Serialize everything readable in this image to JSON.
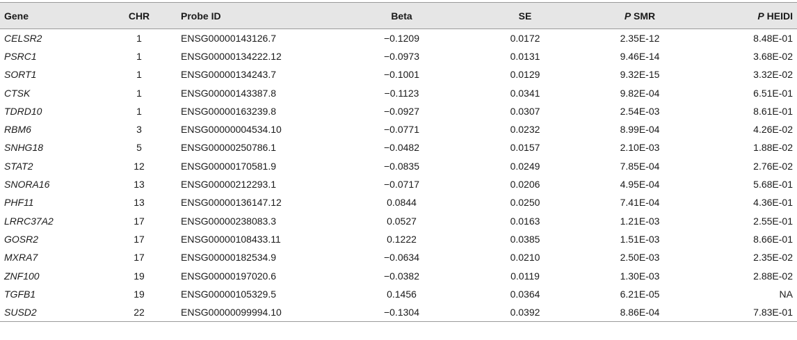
{
  "table": {
    "headers": {
      "gene": "Gene",
      "chr": "CHR",
      "probe_id": "Probe ID",
      "beta": "Beta",
      "se": "SE",
      "p_smr_p": "P",
      "p_smr_rest": " SMR",
      "p_heidi_p": "P",
      "p_heidi_rest": " HEIDI"
    },
    "rows": [
      {
        "gene": "CELSR2",
        "chr": "1",
        "probe": "ENSG00000143126.7",
        "beta": "−0.1209",
        "se": "0.0172",
        "psmr": "2.35E-12",
        "pheidi": "8.48E-01"
      },
      {
        "gene": "PSRC1",
        "chr": "1",
        "probe": "ENSG00000134222.12",
        "beta": "−0.0973",
        "se": "0.0131",
        "psmr": "9.46E-14",
        "pheidi": "3.68E-02"
      },
      {
        "gene": "SORT1",
        "chr": "1",
        "probe": "ENSG00000134243.7",
        "beta": "−0.1001",
        "se": "0.0129",
        "psmr": "9.32E-15",
        "pheidi": "3.32E-02"
      },
      {
        "gene": "CTSK",
        "chr": "1",
        "probe": "ENSG00000143387.8",
        "beta": "−0.1123",
        "se": "0.0341",
        "psmr": "9.82E-04",
        "pheidi": "6.51E-01"
      },
      {
        "gene": "TDRD10",
        "chr": "1",
        "probe": "ENSG00000163239.8",
        "beta": "−0.0927",
        "se": "0.0307",
        "psmr": "2.54E-03",
        "pheidi": "8.61E-01"
      },
      {
        "gene": "RBM6",
        "chr": "3",
        "probe": "ENSG00000004534.10",
        "beta": "−0.0771",
        "se": "0.0232",
        "psmr": "8.99E-04",
        "pheidi": "4.26E-02"
      },
      {
        "gene": "SNHG18",
        "chr": "5",
        "probe": "ENSG00000250786.1",
        "beta": "−0.0482",
        "se": "0.0157",
        "psmr": "2.10E-03",
        "pheidi": "1.88E-02"
      },
      {
        "gene": "STAT2",
        "chr": "12",
        "probe": "ENSG00000170581.9",
        "beta": "−0.0835",
        "se": "0.0249",
        "psmr": "7.85E-04",
        "pheidi": "2.76E-02"
      },
      {
        "gene": "SNORA16",
        "chr": "13",
        "probe": "ENSG00000212293.1",
        "beta": "−0.0717",
        "se": "0.0206",
        "psmr": "4.95E-04",
        "pheidi": "5.68E-01"
      },
      {
        "gene": "PHF11",
        "chr": "13",
        "probe": "ENSG00000136147.12",
        "beta": "0.0844",
        "se": "0.0250",
        "psmr": "7.41E-04",
        "pheidi": "4.36E-01"
      },
      {
        "gene": "LRRC37A2",
        "chr": "17",
        "probe": "ENSG00000238083.3",
        "beta": "0.0527",
        "se": "0.0163",
        "psmr": "1.21E-03",
        "pheidi": "2.55E-01"
      },
      {
        "gene": "GOSR2",
        "chr": "17",
        "probe": "ENSG00000108433.11",
        "beta": "0.1222",
        "se": "0.0385",
        "psmr": "1.51E-03",
        "pheidi": "8.66E-01"
      },
      {
        "gene": "MXRA7",
        "chr": "17",
        "probe": "ENSG00000182534.9",
        "beta": "−0.0634",
        "se": "0.0210",
        "psmr": "2.50E-03",
        "pheidi": "2.35E-02"
      },
      {
        "gene": "ZNF100",
        "chr": "19",
        "probe": "ENSG00000197020.6",
        "beta": "−0.0382",
        "se": "0.0119",
        "psmr": "1.30E-03",
        "pheidi": "2.88E-02"
      },
      {
        "gene": "TGFB1",
        "chr": "19",
        "probe": "ENSG00000105329.5",
        "beta": "0.1456",
        "se": "0.0364",
        "psmr": "6.21E-05",
        "pheidi": "NA"
      },
      {
        "gene": "SUSD2",
        "chr": "22",
        "probe": "ENSG00000099994.10",
        "beta": "−0.1304",
        "se": "0.0392",
        "psmr": "8.86E-04",
        "pheidi": "7.83E-01"
      }
    ]
  }
}
